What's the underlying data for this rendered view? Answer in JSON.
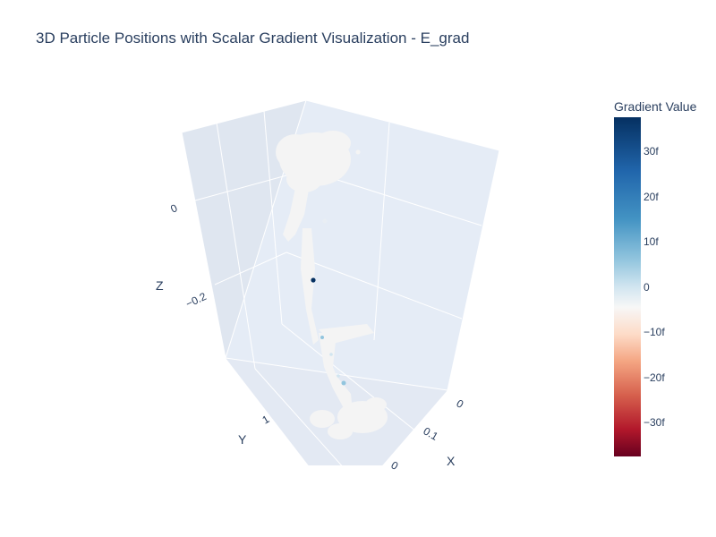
{
  "chart_data": {
    "type": "scatter3d",
    "title": "3D Particle Positions with Scalar Gradient Visualization - E_grad",
    "axes": {
      "x": {
        "label": "X",
        "ticks": [
          "0",
          "0.1",
          "0"
        ]
      },
      "y": {
        "label": "Y",
        "ticks": [
          "1"
        ]
      },
      "z": {
        "label": "Z",
        "ticks": [
          "0",
          "−0.2"
        ]
      }
    },
    "colorbar": {
      "title": "Gradient Value",
      "colorscale": "RdBu",
      "range": [
        -38,
        38
      ],
      "ticks": [
        {
          "label": "30f",
          "value": 30
        },
        {
          "label": "20f",
          "value": 20
        },
        {
          "label": "10f",
          "value": 10
        },
        {
          "label": "0",
          "value": 0
        },
        {
          "label": "−10f",
          "value": -10
        },
        {
          "label": "−20f",
          "value": -20
        },
        {
          "label": "−30f",
          "value": -30
        }
      ]
    },
    "background_color": "#e5ecf6",
    "grid": true
  }
}
